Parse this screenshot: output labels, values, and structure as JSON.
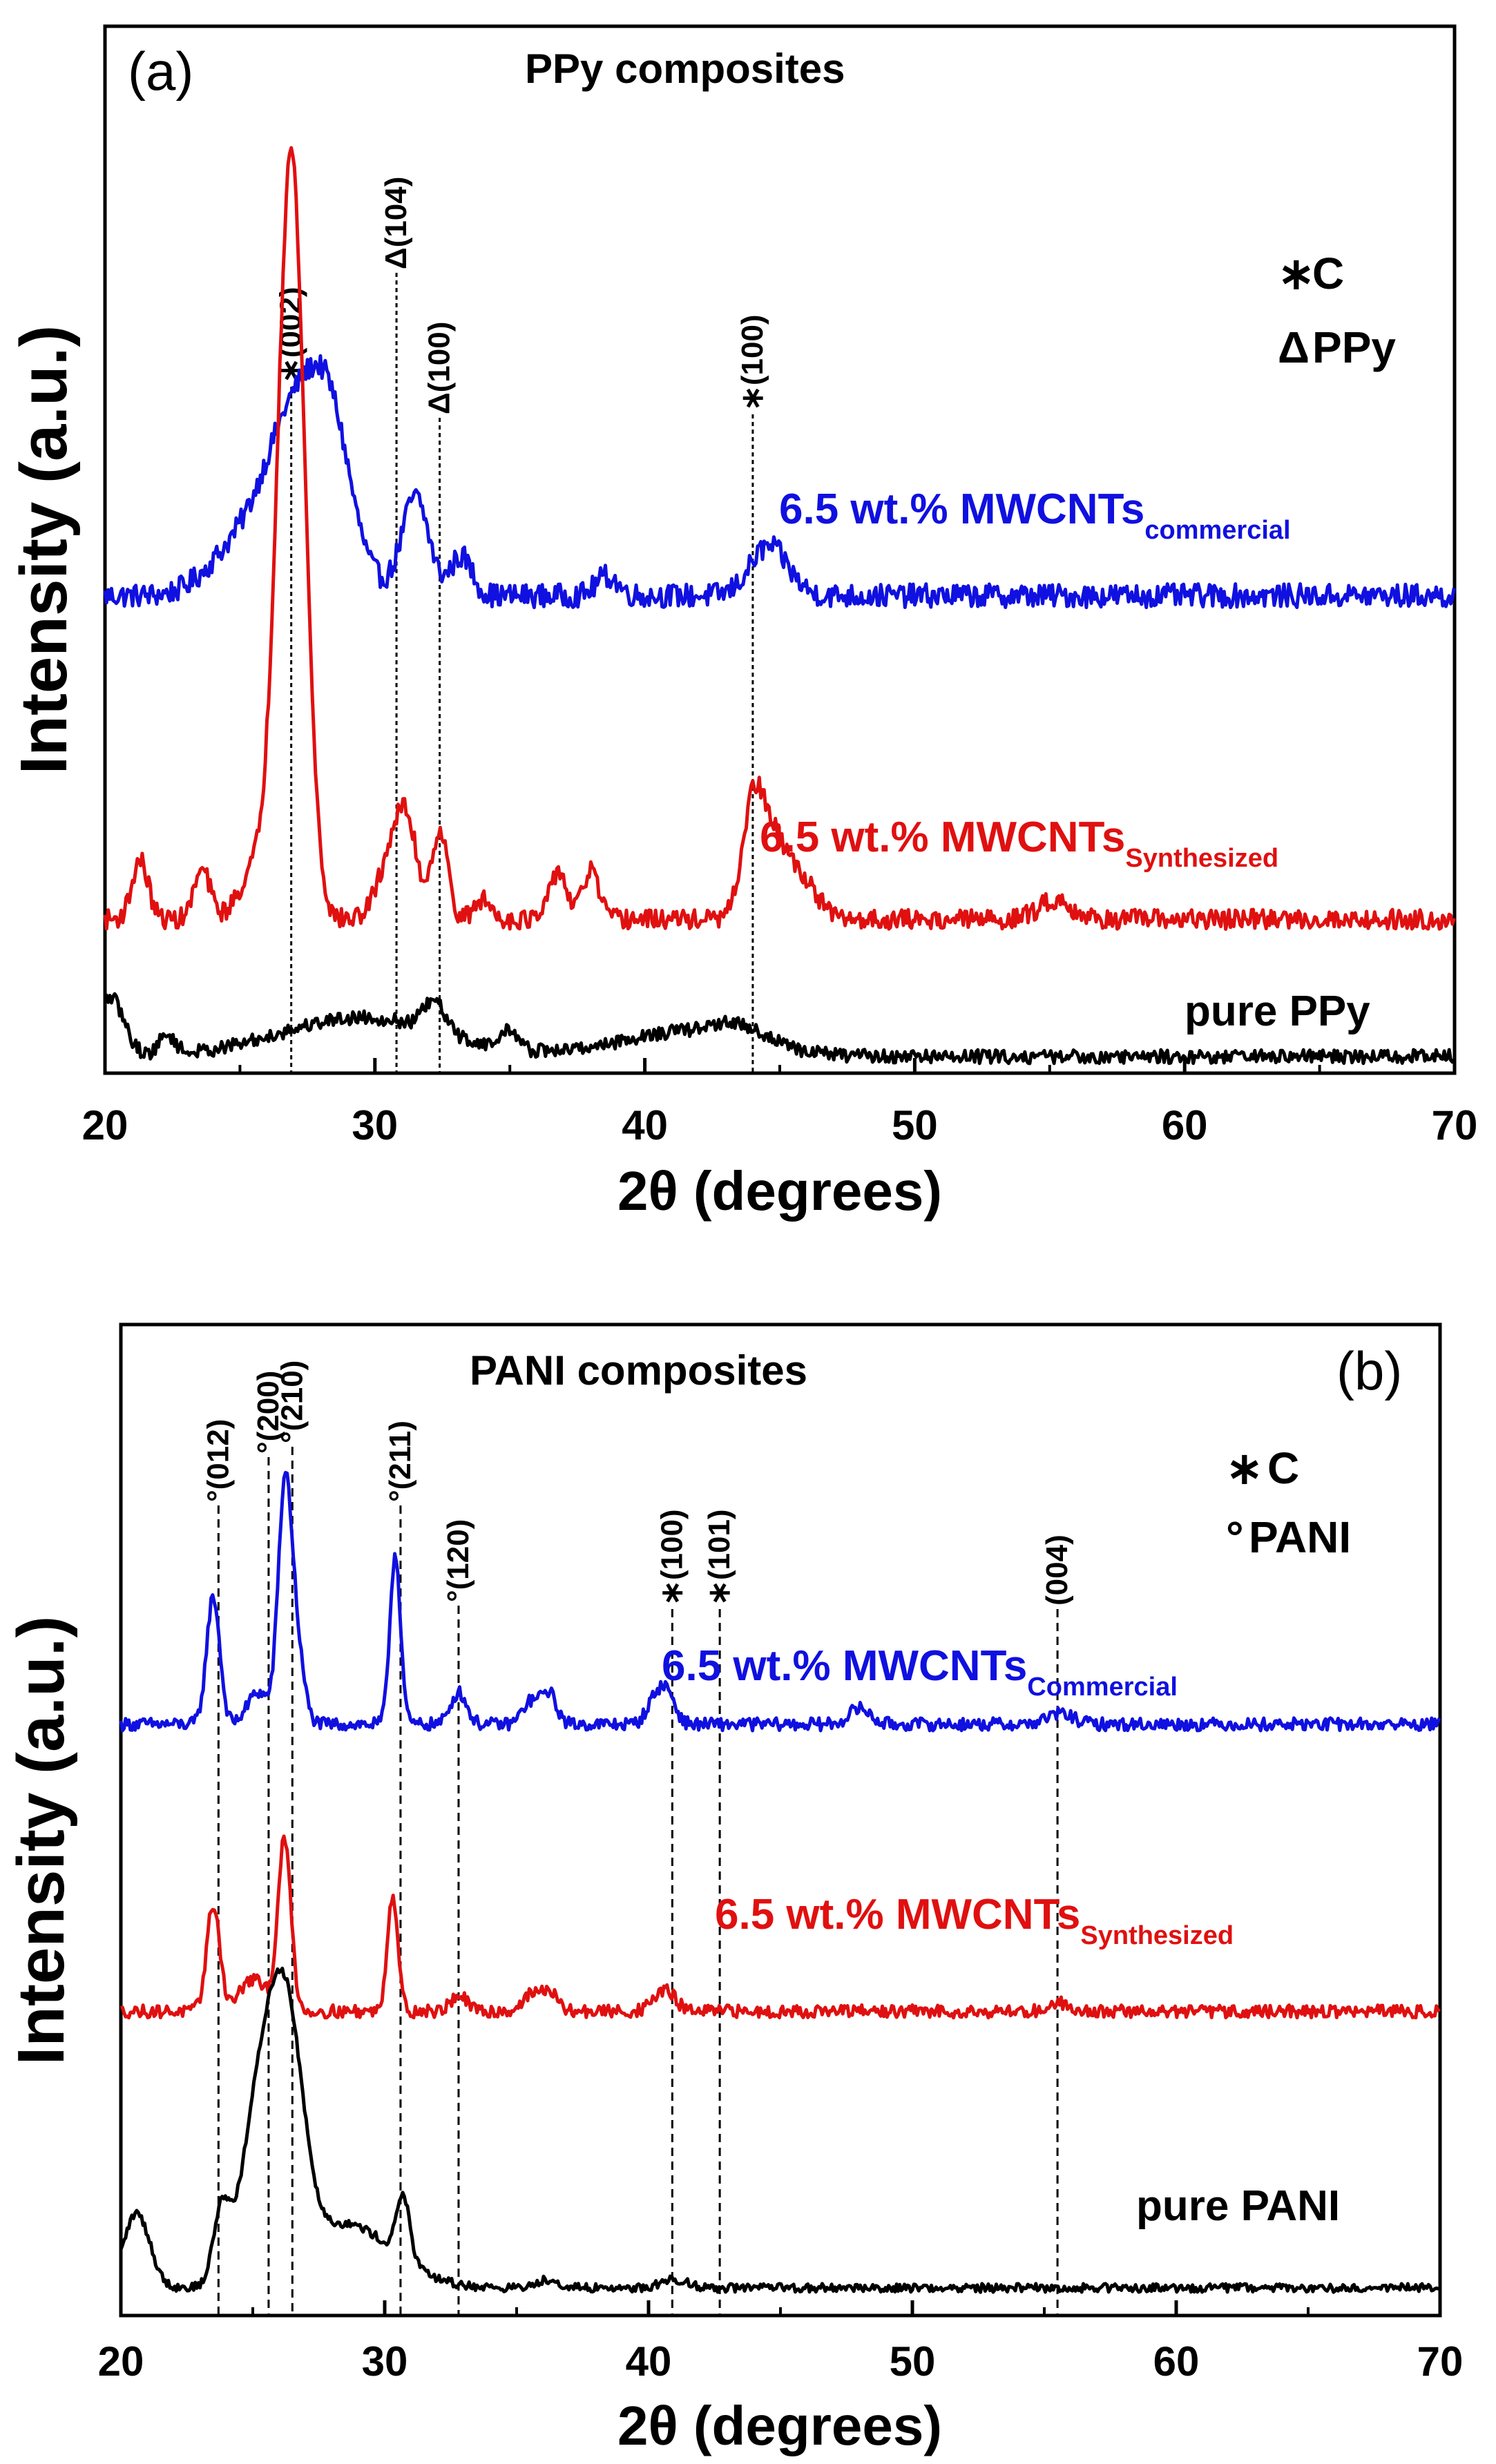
{
  "chart_data": [
    {
      "panel": "(a)",
      "type": "line",
      "title": "PPy composites",
      "xlabel": "2θ (degrees)",
      "ylabel": "Intensity (a.u.)",
      "xlim": [
        20,
        70
      ],
      "xticks": [
        "20",
        "30",
        "40",
        "50",
        "60",
        "70"
      ],
      "legend": [
        {
          "symbol": "∗",
          "text": "C"
        },
        {
          "symbol": "Δ",
          "text": "PPy"
        }
      ],
      "series": [
        {
          "name": "6.5 wt.% MWCNTs commercial",
          "label_main": "6.5 wt.% MWCNTs",
          "label_sub": "commercial",
          "color": "#1010e0",
          "baseline": 0.47,
          "noise": 0.012,
          "peaks": [
            [
              24.5,
              0.03,
              1.0
            ],
            [
              27.2,
              0.2,
              1.3
            ],
            [
              28.4,
              0.08,
              0.7
            ],
            [
              31.5,
              0.1,
              0.5
            ],
            [
              33.2,
              0.04,
              0.4
            ],
            [
              38.6,
              0.02,
              0.4
            ],
            [
              44.6,
              0.05,
              0.7
            ]
          ]
        },
        {
          "name": "6.5 wt.% MWCNTs Synthesized",
          "label_main": "6.5 wt.% MWCNTs",
          "label_sub": "Synthesized",
          "color": "#e01010",
          "baseline": 0.14,
          "noise": 0.01,
          "peaks": [
            [
              21.3,
              0.06,
              0.3
            ],
            [
              23.6,
              0.05,
              0.3
            ],
            [
              25.6,
              0.05,
              0.6
            ],
            [
              26.9,
              0.78,
              0.5
            ],
            [
              30.6,
              0.06,
              0.5
            ],
            [
              31.2,
              0.08,
              0.4
            ],
            [
              32.4,
              0.09,
              0.3
            ],
            [
              34.0,
              0.02,
              0.3
            ],
            [
              36.8,
              0.05,
              0.3
            ],
            [
              38.0,
              0.05,
              0.3
            ],
            [
              44.0,
              0.1,
              0.4
            ],
            [
              44.8,
              0.08,
              0.6
            ],
            [
              46.0,
              0.03,
              0.5
            ],
            [
              55.2,
              0.02,
              0.6
            ]
          ]
        },
        {
          "name": "pure PPy",
          "label_main": "pure PPy",
          "label_sub": "",
          "color": "#000000",
          "baseline": 0.0,
          "noise": 0.007,
          "peaks": [
            [
              20.2,
              0.06,
              0.5
            ],
            [
              22.3,
              0.02,
              0.3
            ],
            [
              29.5,
              0.04,
              3.0
            ],
            [
              32.2,
              0.03,
              0.4
            ],
            [
              35.0,
              0.02,
              0.3
            ],
            [
              41.5,
              0.025,
              2.5
            ],
            [
              43.5,
              0.015,
              1.0
            ]
          ]
        }
      ],
      "reference_lines": [
        {
          "x": 26.9,
          "label": "∗(002)"
        },
        {
          "x": 30.8,
          "label": "Δ(104)"
        },
        {
          "x": 32.4,
          "label": "Δ(100)"
        },
        {
          "x": 44.0,
          "label": "∗(100)"
        }
      ]
    },
    {
      "panel": "(b)",
      "type": "line",
      "title": "PANI composites",
      "xlabel": "2θ (degrees)",
      "ylabel": "Intensity (a.u.)",
      "xlim": [
        20,
        70
      ],
      "xticks": [
        "20",
        "30",
        "40",
        "50",
        "60",
        "70"
      ],
      "legend": [
        {
          "symbol": "∗",
          "text": "C"
        },
        {
          "symbol": "°",
          "text": "PANI"
        }
      ],
      "series": [
        {
          "name": "6.5 wt.% MWCNTs Commercial",
          "label_main": "6.5 wt.% MWCNTs",
          "label_sub": "Commercial",
          "color": "#1010e0",
          "baseline": 0.53,
          "noise": 0.006,
          "peaks": [
            [
              23.5,
              0.12,
              0.25
            ],
            [
              25.2,
              0.03,
              0.4
            ],
            [
              26.2,
              0.2,
              0.25
            ],
            [
              26.6,
              0.08,
              0.3
            ],
            [
              30.4,
              0.16,
              0.2
            ],
            [
              32.8,
              0.03,
              0.3
            ],
            [
              35.5,
              0.02,
              0.3
            ],
            [
              36.2,
              0.03,
              0.3
            ],
            [
              40.2,
              0.02,
              0.3
            ],
            [
              40.7,
              0.03,
              0.3
            ],
            [
              48.0,
              0.015,
              0.4
            ],
            [
              55.6,
              0.01,
              0.5
            ]
          ]
        },
        {
          "name": "6.5 wt.% MWCNTs Synthesized",
          "label_main": "6.5 wt.% MWCNTs",
          "label_sub": "Synthesized",
          "color": "#e01010",
          "baseline": 0.26,
          "noise": 0.006,
          "peaks": [
            [
              23.5,
              0.1,
              0.25
            ],
            [
              25.0,
              0.03,
              0.5
            ],
            [
              26.2,
              0.16,
              0.25
            ],
            [
              30.3,
              0.11,
              0.2
            ],
            [
              32.8,
              0.015,
              0.3
            ],
            [
              35.5,
              0.015,
              0.3
            ],
            [
              36.2,
              0.02,
              0.3
            ],
            [
              40.6,
              0.02,
              0.4
            ],
            [
              55.6,
              0.008,
              0.4
            ]
          ]
        },
        {
          "name": "pure PANI",
          "label_main": "pure PANI",
          "label_sub": "",
          "color": "#000000",
          "baseline": 0.0,
          "noise": 0.004,
          "peaks": [
            [
              20.6,
              0.07,
              0.5
            ],
            [
              23.8,
              0.06,
              0.3
            ],
            [
              25.5,
              0.2,
              0.8
            ],
            [
              26.4,
              0.14,
              0.6
            ],
            [
              28.5,
              0.06,
              1.8
            ],
            [
              30.7,
              0.06,
              0.25
            ],
            [
              36.2,
              0.008,
              0.4
            ],
            [
              41.0,
              0.008,
              0.5
            ]
          ]
        }
      ],
      "reference_lines": [
        {
          "x": 23.7,
          "label": "°(012)"
        },
        {
          "x": 25.6,
          "label": "°(200)"
        },
        {
          "x": 26.5,
          "label": "°(210)"
        },
        {
          "x": 30.6,
          "label": "°(211)"
        },
        {
          "x": 32.8,
          "label": "°(120)"
        },
        {
          "x": 40.9,
          "label": "∗(100)"
        },
        {
          "x": 42.7,
          "label": "∗(101)"
        },
        {
          "x": 55.5,
          "label": "(004)"
        }
      ]
    }
  ]
}
